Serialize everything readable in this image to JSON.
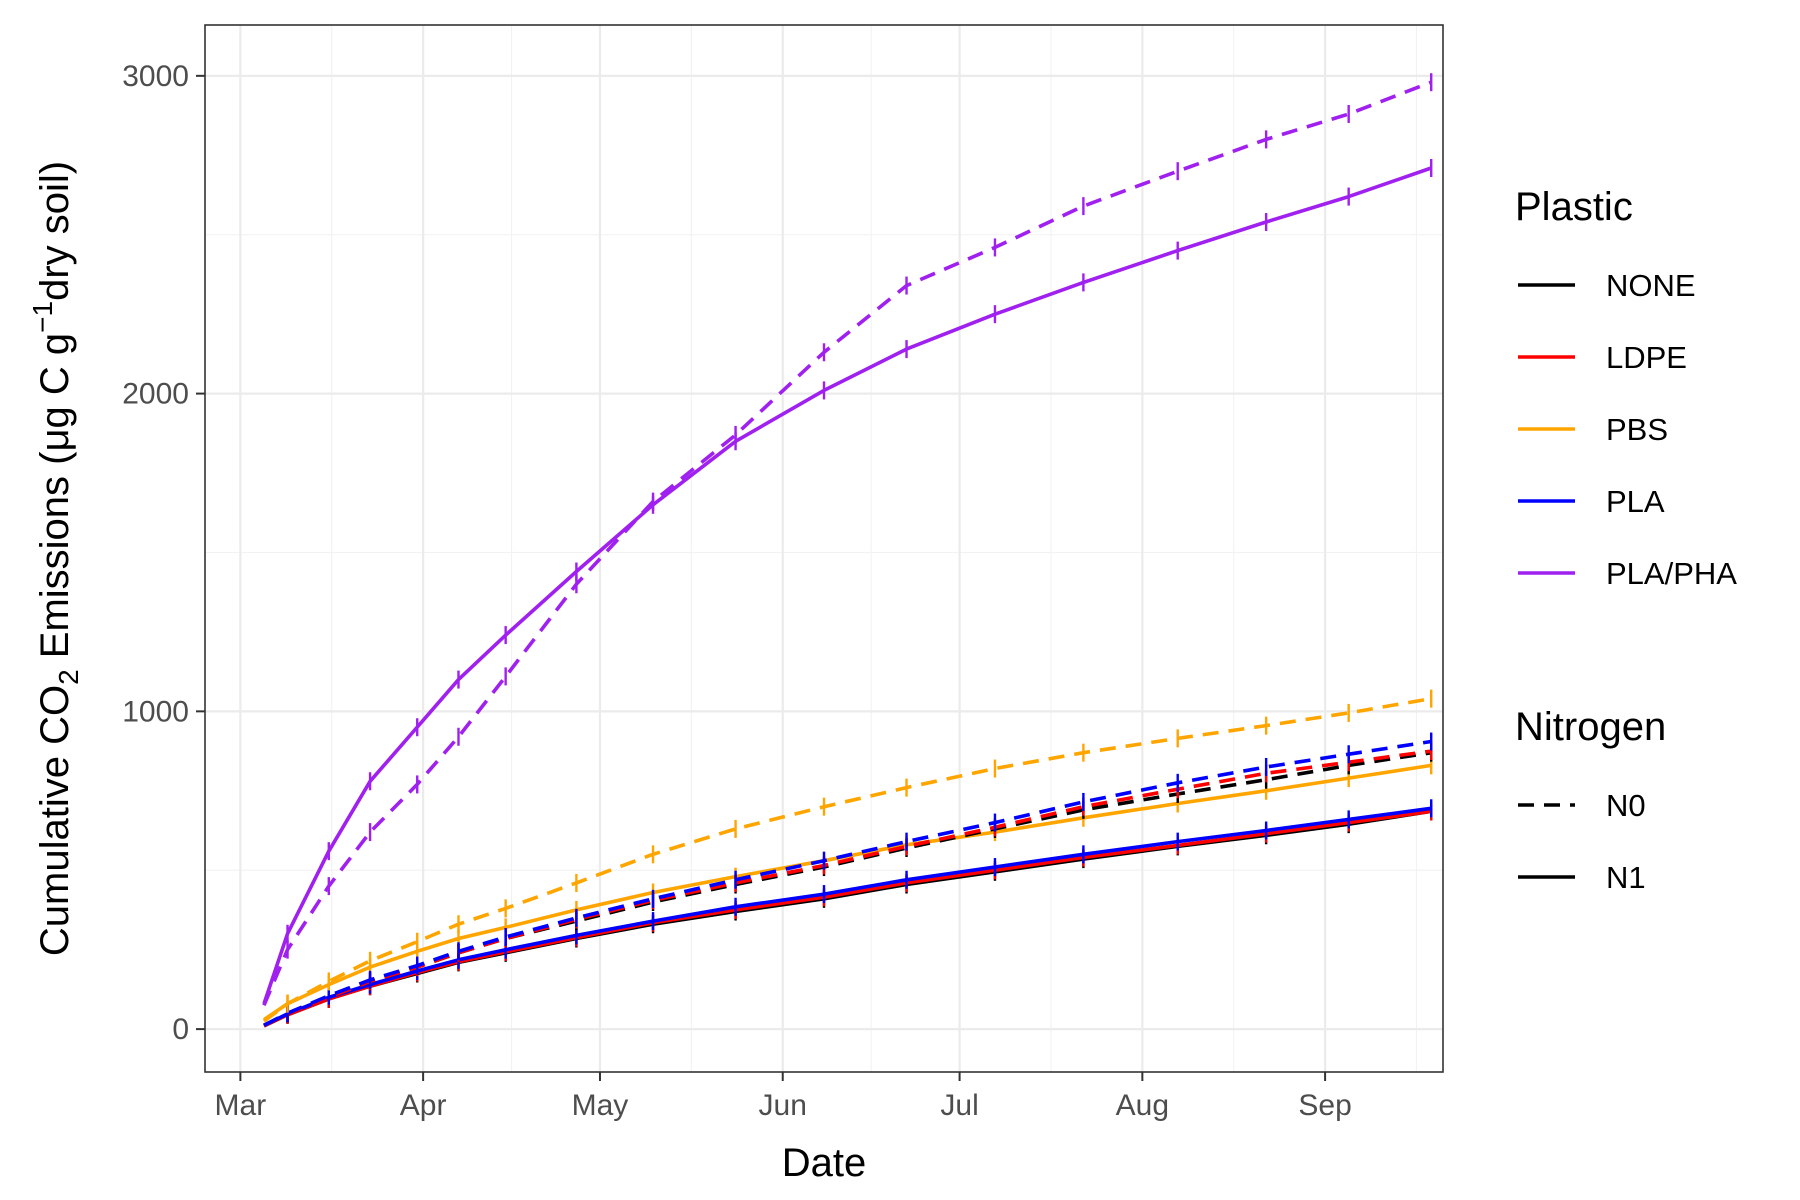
{
  "chart_data": {
    "type": "line",
    "xlabel": "Date",
    "ylabel_main": "Cumulative CO",
    "ylabel_co2_sub": "2",
    "ylabel_mid": " Emissions (μg C g",
    "ylabel_sup": "−1",
    "ylabel_end": "dry soil)",
    "x_range": [
      "2024-02-24",
      "2024-09-21"
    ],
    "ylim": [
      -135,
      3160
    ],
    "x_ticks": [
      {
        "date": "2024-03-01",
        "label": "Mar"
      },
      {
        "date": "2024-04-01",
        "label": "Apr"
      },
      {
        "date": "2024-05-01",
        "label": "May"
      },
      {
        "date": "2024-06-01",
        "label": "Jun"
      },
      {
        "date": "2024-07-01",
        "label": "Jul"
      },
      {
        "date": "2024-08-01",
        "label": "Aug"
      },
      {
        "date": "2024-09-01",
        "label": "Sep"
      }
    ],
    "y_ticks": [
      0,
      1000,
      2000,
      3000
    ],
    "y_minor_ticks": [
      500,
      1500,
      2500
    ],
    "grid": true,
    "legend_placement": "right",
    "legend": {
      "plastic_title": "Plastic",
      "plastic": [
        {
          "name": "NONE",
          "color": "#000000"
        },
        {
          "name": "LDPE",
          "color": "#ff0000"
        },
        {
          "name": "PBS",
          "color": "#ffa500"
        },
        {
          "name": "PLA",
          "color": "#0000ff"
        },
        {
          "name": "PLA/PHA",
          "color": "#a020f0"
        }
      ],
      "nitrogen_title": "Nitrogen",
      "nitrogen": [
        {
          "name": "N0",
          "dash": "dashed"
        },
        {
          "name": "N1",
          "dash": "solid"
        }
      ]
    },
    "dates": [
      "2024-03-05",
      "2024-03-09",
      "2024-03-16",
      "2024-03-23",
      "2024-03-31",
      "2024-04-07",
      "2024-04-15",
      "2024-04-27",
      "2024-05-10",
      "2024-05-24",
      "2024-06-08",
      "2024-06-22",
      "2024-07-07",
      "2024-07-22",
      "2024-08-07",
      "2024-08-22",
      "2024-09-05",
      "2024-09-19"
    ],
    "series": [
      {
        "plastic": "NONE",
        "nitrogen": "N1",
        "color": "#000000",
        "dash": "solid",
        "values": [
          10,
          45,
          95,
          135,
          175,
          210,
          240,
          285,
          330,
          370,
          410,
          455,
          495,
          535,
          575,
          610,
          645,
          685
        ]
      },
      {
        "plastic": "LDPE",
        "nitrogen": "N1",
        "color": "#ff0000",
        "dash": "solid",
        "values": [
          10,
          45,
          95,
          135,
          178,
          212,
          243,
          288,
          335,
          375,
          415,
          460,
          500,
          540,
          578,
          615,
          650,
          685
        ]
      },
      {
        "plastic": "PLA",
        "nitrogen": "N1",
        "color": "#0000ff",
        "dash": "solid",
        "values": [
          12,
          48,
          100,
          140,
          183,
          218,
          250,
          295,
          340,
          385,
          425,
          470,
          510,
          550,
          590,
          625,
          660,
          695
        ]
      },
      {
        "plastic": "PBS",
        "nitrogen": "N1",
        "color": "#ffa500",
        "dash": "solid",
        "values": [
          30,
          80,
          140,
          195,
          245,
          285,
          320,
          375,
          430,
          480,
          530,
          580,
          620,
          665,
          710,
          750,
          790,
          830
        ]
      },
      {
        "plastic": "NONE",
        "nitrogen": "N0",
        "color": "#000000",
        "dash": "dashed",
        "values": [
          12,
          48,
          100,
          150,
          195,
          240,
          285,
          340,
          400,
          455,
          510,
          570,
          630,
          690,
          740,
          785,
          830,
          870
        ]
      },
      {
        "plastic": "LDPE",
        "nitrogen": "N0",
        "color": "#ff0000",
        "dash": "dashed",
        "values": [
          12,
          48,
          100,
          150,
          195,
          240,
          285,
          345,
          405,
          460,
          515,
          575,
          635,
          700,
          755,
          805,
          840,
          875
        ]
      },
      {
        "plastic": "PLA",
        "nitrogen": "N0",
        "color": "#0000ff",
        "dash": "dashed",
        "values": [
          12,
          50,
          105,
          155,
          200,
          245,
          290,
          350,
          410,
          470,
          530,
          590,
          650,
          715,
          775,
          825,
          865,
          905
        ]
      },
      {
        "plastic": "PBS",
        "nitrogen": "N0",
        "color": "#ffa500",
        "dash": "dashed",
        "values": [
          25,
          80,
          150,
          215,
          275,
          330,
          380,
          460,
          550,
          630,
          700,
          760,
          820,
          870,
          915,
          955,
          995,
          1040
        ]
      },
      {
        "plastic": "PLA/PHA",
        "nitrogen": "N1",
        "color": "#a020f0",
        "dash": "solid",
        "values": [
          80,
          300,
          560,
          780,
          950,
          1100,
          1240,
          1440,
          1650,
          1850,
          2010,
          2140,
          2250,
          2350,
          2450,
          2540,
          2620,
          2710
        ]
      },
      {
        "plastic": "PLA/PHA",
        "nitrogen": "N0",
        "color": "#a020f0",
        "dash": "dashed",
        "values": [
          75,
          250,
          450,
          620,
          770,
          920,
          1110,
          1400,
          1660,
          1870,
          2130,
          2340,
          2460,
          2590,
          2700,
          2800,
          2880,
          2980
        ]
      }
    ]
  }
}
